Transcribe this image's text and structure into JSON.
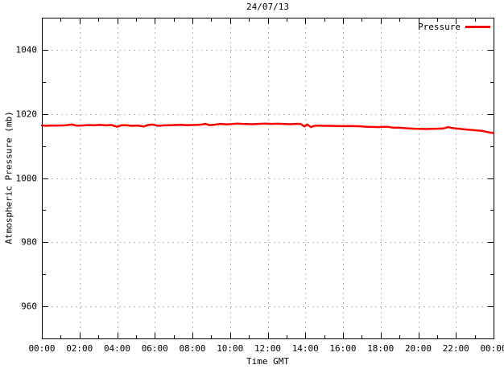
{
  "chart_data": {
    "type": "line",
    "title": "24/07/13",
    "xlabel": "Time GMT",
    "ylabel": "Atmospheric Pressure (mb)",
    "xlim": [
      0,
      24
    ],
    "ylim": [
      950,
      1050
    ],
    "grid": true,
    "legend_position": "top-right-inside",
    "x_major_ticks": [
      0,
      2,
      4,
      6,
      8,
      10,
      12,
      14,
      16,
      18,
      20,
      22,
      24
    ],
    "x_tick_labels": [
      "00:00",
      "02:00",
      "04:00",
      "06:00",
      "08:00",
      "10:00",
      "12:00",
      "14:00",
      "16:00",
      "18:00",
      "20:00",
      "22:00",
      "00:00"
    ],
    "x_minor_step": 1,
    "y_major_ticks": [
      960,
      980,
      1000,
      1020,
      1040
    ],
    "y_tick_labels": [
      "960",
      "980",
      "1000",
      "1020",
      "1040"
    ],
    "y_minor_step": 10,
    "colors": {
      "line": "#ff0000",
      "grid": "#b8b8b8",
      "axis": "#000000"
    },
    "series": [
      {
        "name": "Pressure",
        "color": "#ff0000",
        "x_hours": [
          0,
          0.25,
          0.5,
          0.75,
          1.0,
          1.25,
          1.6,
          1.85,
          2.1,
          2.5,
          2.8,
          3.1,
          3.4,
          3.7,
          4.0,
          4.2,
          4.45,
          4.8,
          5.1,
          5.4,
          5.65,
          5.9,
          6.15,
          6.5,
          6.8,
          7.1,
          7.4,
          7.7,
          8.0,
          8.35,
          8.7,
          8.9,
          9.15,
          9.5,
          9.8,
          10.1,
          10.4,
          10.65,
          10.9,
          11.2,
          11.5,
          11.9,
          12.2,
          12.55,
          12.9,
          13.2,
          13.5,
          13.75,
          13.95,
          14.1,
          14.3,
          14.5,
          14.75,
          15.0,
          15.3,
          15.6,
          16.0,
          16.3,
          16.65,
          17.0,
          17.25,
          17.6,
          17.9,
          18.1,
          18.35,
          18.7,
          18.95,
          19.2,
          19.5,
          19.8,
          20.1,
          20.4,
          20.7,
          21.0,
          21.3,
          21.6,
          21.8,
          22.05,
          22.3,
          22.6,
          22.85,
          23.1,
          23.35,
          23.6,
          23.8,
          24.0
        ],
        "pressure_mb": [
          1016.4,
          1016.3,
          1016.4,
          1016.35,
          1016.4,
          1016.45,
          1016.7,
          1016.35,
          1016.4,
          1016.55,
          1016.45,
          1016.6,
          1016.45,
          1016.55,
          1016.0,
          1016.45,
          1016.5,
          1016.3,
          1016.4,
          1016.1,
          1016.55,
          1016.7,
          1016.3,
          1016.45,
          1016.5,
          1016.55,
          1016.6,
          1016.5,
          1016.55,
          1016.6,
          1016.9,
          1016.5,
          1016.65,
          1016.9,
          1016.75,
          1016.85,
          1017.0,
          1016.9,
          1016.85,
          1016.8,
          1016.9,
          1017.0,
          1016.9,
          1016.95,
          1016.85,
          1016.8,
          1016.9,
          1016.9,
          1016.1,
          1016.7,
          1015.9,
          1016.3,
          1016.35,
          1016.3,
          1016.3,
          1016.25,
          1016.2,
          1016.25,
          1016.2,
          1016.1,
          1016.0,
          1015.95,
          1015.9,
          1016.0,
          1016.0,
          1015.7,
          1015.75,
          1015.6,
          1015.5,
          1015.4,
          1015.35,
          1015.3,
          1015.35,
          1015.4,
          1015.45,
          1015.9,
          1015.6,
          1015.45,
          1015.3,
          1015.1,
          1015.0,
          1014.85,
          1014.75,
          1014.45,
          1014.2,
          1014.0
        ]
      }
    ]
  }
}
